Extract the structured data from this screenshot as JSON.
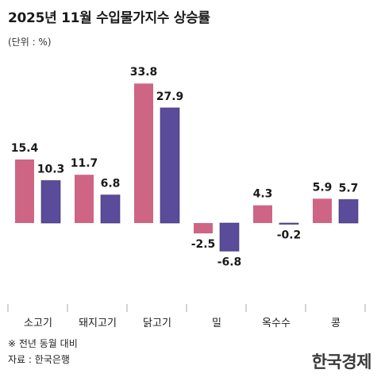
{
  "header": {
    "title": "2025년 11월 수입물가지수 상승률",
    "unit": "(단위 : %)"
  },
  "footer": {
    "note": "※ 전년 동월 대비",
    "source": "자료 : 한국은행",
    "brand": "한국경제"
  },
  "colors": {
    "series_a": "#cf6585",
    "series_b": "#5a4c9a",
    "axis": "#aaaaaa"
  },
  "chart_data": {
    "type": "bar",
    "categories": [
      "소고기",
      "돼지고기",
      "닭고기",
      "밀",
      "옥수수",
      "콩"
    ],
    "series": [
      {
        "values": [
          15.4,
          11.7,
          33.8,
          -2.5,
          4.3,
          5.9
        ]
      },
      {
        "values": [
          10.3,
          6.8,
          27.9,
          -6.8,
          -0.2,
          5.7
        ]
      }
    ],
    "ylim": [
      -17,
      36
    ],
    "grid": false,
    "legend": "none",
    "title": "2025년 11월 수입물가지수 상승률",
    "xlabel": "",
    "ylabel": ""
  }
}
